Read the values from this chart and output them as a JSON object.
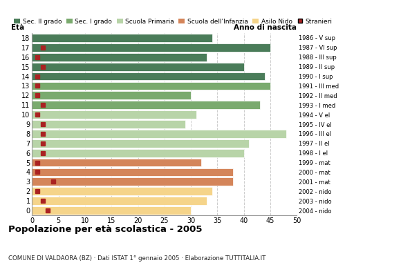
{
  "ages": [
    18,
    17,
    16,
    15,
    14,
    13,
    12,
    11,
    10,
    9,
    8,
    7,
    6,
    5,
    4,
    3,
    2,
    1,
    0
  ],
  "anno_nascita": [
    "1986 - V sup",
    "1987 - VI sup",
    "1988 - III sup",
    "1989 - II sup",
    "1990 - I sup",
    "1991 - III med",
    "1992 - II med",
    "1993 - I med",
    "1994 - V el",
    "1995 - IV el",
    "1996 - III el",
    "1997 - II el",
    "1998 - I el",
    "1999 - mat",
    "2000 - mat",
    "2001 - mat",
    "2002 - nido",
    "2003 - nido",
    "2004 - nido"
  ],
  "bar_values": [
    34,
    45,
    33,
    40,
    44,
    45,
    30,
    43,
    31,
    29,
    48,
    41,
    40,
    32,
    38,
    38,
    34,
    33,
    30
  ],
  "stranieri_values": [
    0,
    2,
    1,
    2,
    1,
    1,
    1,
    2,
    1,
    2,
    2,
    2,
    2,
    1,
    1,
    4,
    1,
    2,
    3
  ],
  "bar_colors": [
    "#4a7c59",
    "#4a7c59",
    "#4a7c59",
    "#4a7c59",
    "#4a7c59",
    "#7aaa6e",
    "#7aaa6e",
    "#7aaa6e",
    "#b8d4a8",
    "#b8d4a8",
    "#b8d4a8",
    "#b8d4a8",
    "#b8d4a8",
    "#d4855a",
    "#d4855a",
    "#d4855a",
    "#f5d48a",
    "#f5d48a",
    "#f5d48a"
  ],
  "legend_labels": [
    "Sec. II grado",
    "Sec. I grado",
    "Scuola Primaria",
    "Scuola dell'Infanzia",
    "Asilo Nido",
    "Stranieri"
  ],
  "legend_colors": [
    "#4a7c59",
    "#7aaa6e",
    "#b8d4a8",
    "#d4855a",
    "#f5d48a",
    "#aa2222"
  ],
  "title": "Popolazione per età scolastica - 2005",
  "subtitle": "COMUNE DI VALDAORA (BZ) · Dati ISTAT 1° gennaio 2005 · Elaborazione TUTTITALIA.IT",
  "eta_label": "Età",
  "anno_label": "Anno di nascita",
  "xlim": [
    0,
    50
  ],
  "bar_height": 0.85,
  "stranieri_color": "#aa2222",
  "stranieri_size": 4,
  "grid_color": "#cccccc",
  "bg_color": "#ffffff",
  "xticks": [
    0,
    5,
    10,
    15,
    20,
    25,
    30,
    35,
    40,
    45,
    50
  ]
}
